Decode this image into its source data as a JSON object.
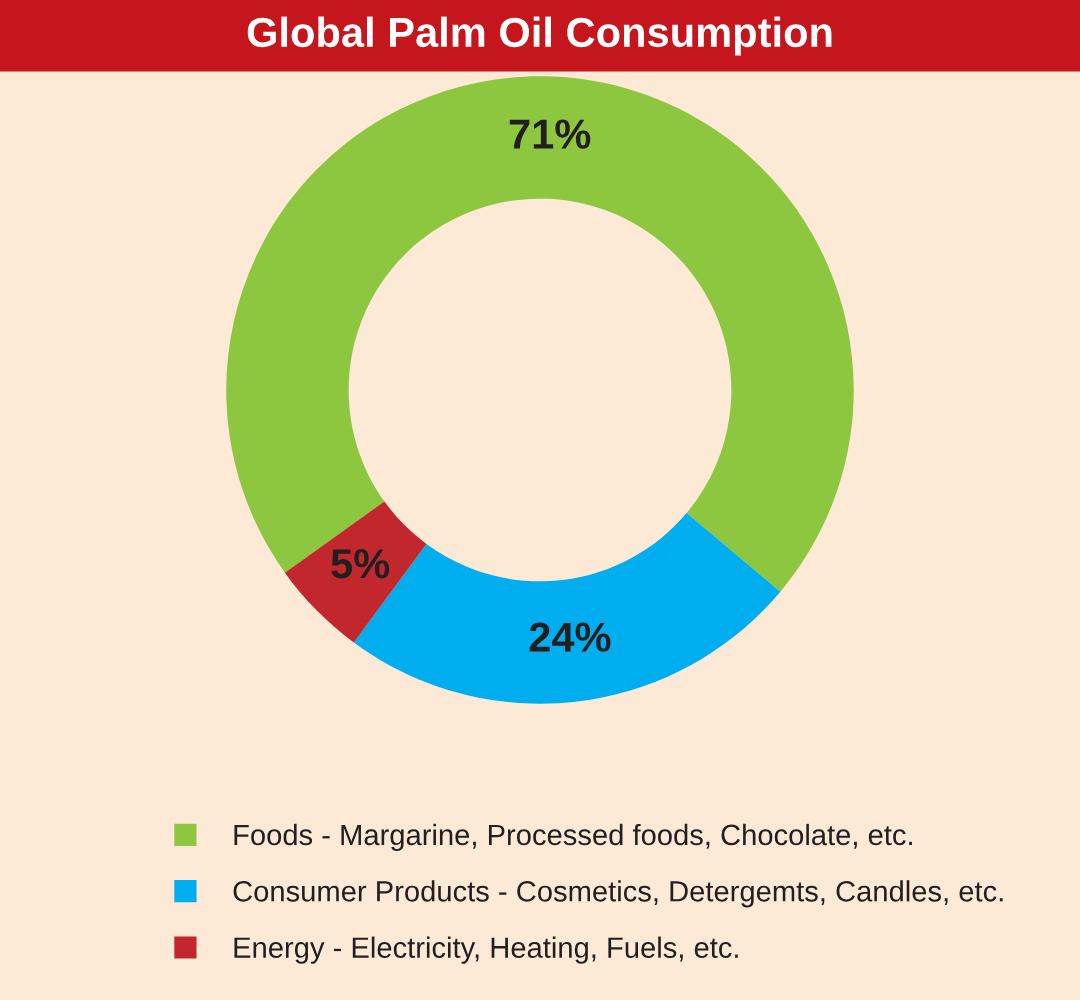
{
  "chart_data": {
    "type": "donut",
    "title": "Global Palm Oil Consumption",
    "categories": [
      "Foods - Margarine, Processed foods, Chocolate, etc.",
      "Consumer Products - Cosmetics, Detergemts, Candles, etc.",
      "Energy - Electricity, Heating, Fuels, etc."
    ],
    "values": [
      71,
      24,
      5
    ],
    "value_labels": [
      "71%",
      "24%",
      "5%"
    ],
    "colors": [
      "#8dc63f",
      "#00aeef",
      "#c1272d"
    ],
    "legend": "bottom"
  }
}
